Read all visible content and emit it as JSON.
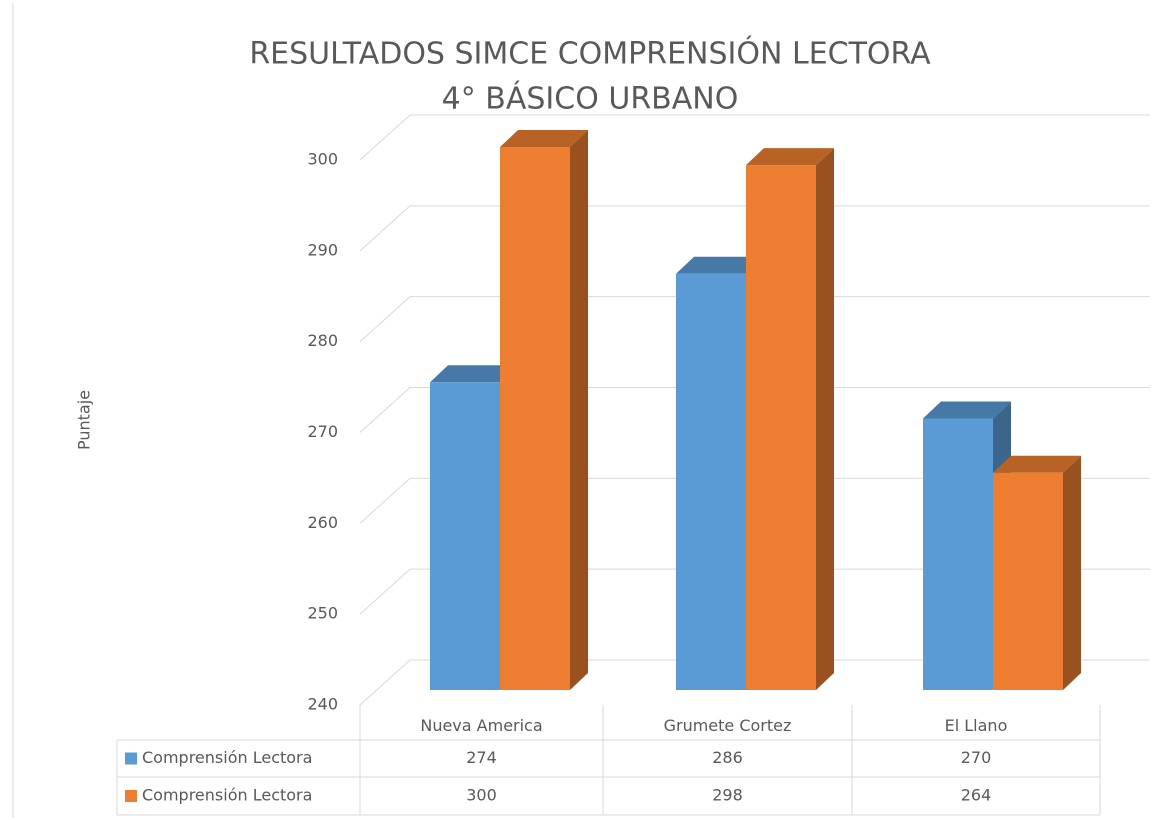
{
  "chart_data": {
    "type": "bar3d",
    "title": [
      "RESULTADOS SIMCE COMPRENSIÓN LECTORA",
      "4° BÁSICO URBANO"
    ],
    "y_label": "Puntaje",
    "categories": [
      "Nueva America",
      "Grumete Cortez",
      "El Llano"
    ],
    "series": [
      {
        "name": "Comprensión Lectora",
        "color": "#5b9bd5",
        "values": [
          274,
          286,
          270
        ]
      },
      {
        "name": "Comprensión Lectora",
        "color": "#ed7d31",
        "values": [
          300,
          298,
          264
        ]
      }
    ],
    "ylim": [
      240,
      300
    ],
    "yticks": [
      240,
      250,
      260,
      270,
      280,
      290,
      300
    ],
    "grid": true,
    "data_table": true
  }
}
